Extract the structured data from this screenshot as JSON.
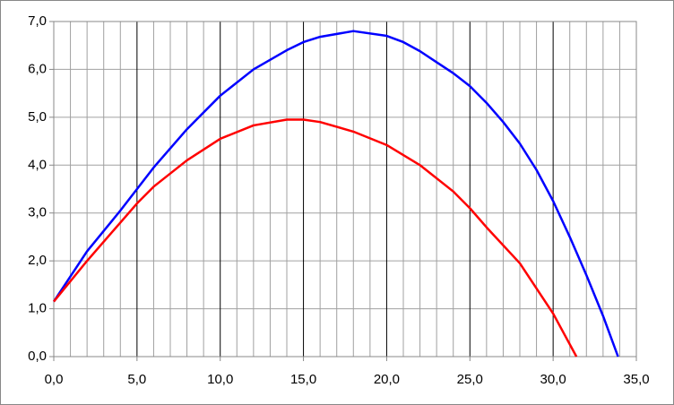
{
  "chart_data": {
    "type": "line",
    "xlim": [
      0,
      35
    ],
    "xticks": [
      {
        "value": 0,
        "label": "0,0"
      },
      {
        "value": 5,
        "label": "5,0"
      },
      {
        "value": 10,
        "label": "10,0"
      },
      {
        "value": 15,
        "label": "15,0"
      },
      {
        "value": 20,
        "label": "20,0"
      },
      {
        "value": 25,
        "label": "25,0"
      },
      {
        "value": 30,
        "label": "30,0"
      },
      {
        "value": 35,
        "label": "35,0"
      }
    ],
    "ylim": [
      0,
      7
    ],
    "yticks": [
      {
        "value": 0,
        "label": "0,0"
      },
      {
        "value": 1,
        "label": "1,0"
      },
      {
        "value": 2,
        "label": "2,0"
      },
      {
        "value": 3,
        "label": "3,0"
      },
      {
        "value": 4,
        "label": "4,0"
      },
      {
        "value": 5,
        "label": "5,0"
      },
      {
        "value": 6,
        "label": "6,0"
      },
      {
        "value": 7,
        "label": "7,0"
      }
    ],
    "grid": true,
    "series": [
      {
        "color": "#0000ff",
        "x": [
          0,
          2,
          4,
          5,
          6,
          8,
          10,
          12,
          14,
          15,
          16,
          18,
          20,
          21,
          22,
          23,
          24,
          25,
          26,
          27,
          28,
          29,
          30,
          31,
          32,
          33,
          33.9
        ],
        "values": [
          1.15,
          2.2,
          3.05,
          3.5,
          3.95,
          4.75,
          5.45,
          6.0,
          6.4,
          6.57,
          6.68,
          6.8,
          6.7,
          6.57,
          6.38,
          6.15,
          5.92,
          5.65,
          5.3,
          4.9,
          4.45,
          3.9,
          3.25,
          2.5,
          1.7,
          0.85,
          0
        ]
      },
      {
        "color": "#ff0000",
        "x": [
          0,
          2,
          4,
          5,
          6,
          8,
          10,
          12,
          14,
          15,
          16,
          18,
          20,
          22,
          24,
          25,
          26,
          28,
          30,
          31.4
        ],
        "values": [
          1.15,
          2.0,
          2.8,
          3.2,
          3.55,
          4.1,
          4.55,
          4.83,
          4.95,
          4.95,
          4.9,
          4.7,
          4.42,
          4.0,
          3.45,
          3.1,
          2.7,
          1.95,
          0.9,
          0
        ]
      }
    ]
  }
}
